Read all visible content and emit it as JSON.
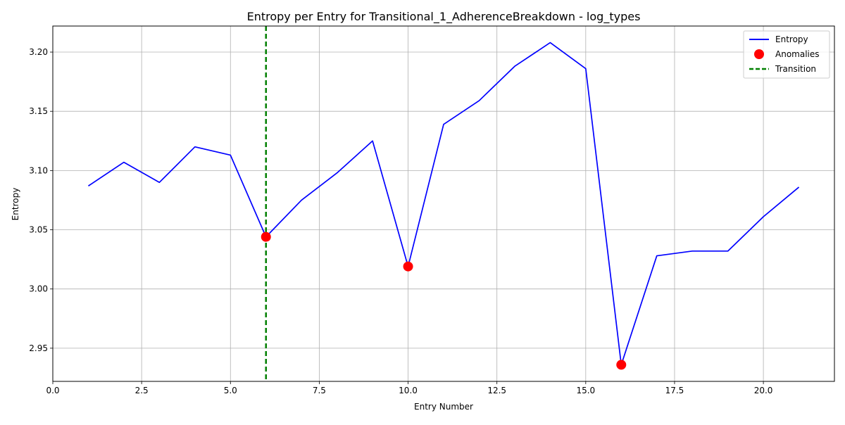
{
  "chart_data": {
    "type": "line",
    "title": "Entropy per Entry for Transitional_1_AdherenceBreakdown - log_types",
    "xlabel": "Entry Number",
    "ylabel": "Entropy",
    "xlim": [
      0,
      22
    ],
    "ylim": [
      2.922,
      3.222
    ],
    "x_ticks": [
      0,
      2.5,
      5,
      7.5,
      10,
      12.5,
      15,
      17.5,
      20
    ],
    "x_tick_labels": [
      "0.0",
      "2.5",
      "5.0",
      "7.5",
      "10.0",
      "12.5",
      "15.0",
      "17.5",
      "20.0"
    ],
    "y_ticks": [
      2.95,
      3.0,
      3.05,
      3.1,
      3.15,
      3.2
    ],
    "y_tick_labels": [
      "2.95",
      "3.00",
      "3.05",
      "3.10",
      "3.15",
      "3.20"
    ],
    "grid": true,
    "legend_position": "top-right",
    "series": [
      {
        "name": "Entropy",
        "kind": "line",
        "color": "#0000ff",
        "x": [
          1,
          2,
          3,
          4,
          5,
          6,
          7,
          8,
          9,
          10,
          11,
          12,
          13,
          14,
          15,
          16,
          17,
          18,
          19,
          20,
          21
        ],
        "values": [
          3.087,
          3.107,
          3.09,
          3.12,
          3.113,
          3.044,
          3.075,
          3.098,
          3.125,
          3.019,
          3.139,
          3.159,
          3.188,
          3.208,
          3.186,
          2.936,
          3.028,
          3.032,
          3.032,
          3.061,
          3.086
        ]
      },
      {
        "name": "Anomalies",
        "kind": "scatter",
        "color": "#ff0000",
        "x": [
          6,
          10,
          16
        ],
        "values": [
          3.044,
          3.019,
          2.936
        ]
      }
    ],
    "vlines": [
      {
        "name": "Transition",
        "x": 6,
        "color": "#008000",
        "style": "dashed"
      }
    ]
  }
}
